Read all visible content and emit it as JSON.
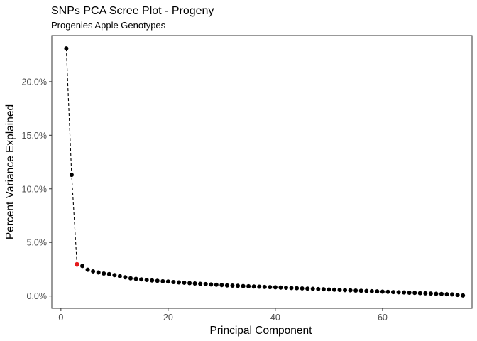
{
  "chart_data": {
    "type": "scatter",
    "title": "SNPs PCA Scree Plot - Progeny",
    "subtitle": "Progenies Apple Genotypes",
    "xlabel": "Principal Component",
    "ylabel": "Percent Variance Explained",
    "xlim": [
      -1.7,
      76.7
    ],
    "ylim": [
      -1.15,
      24.3
    ],
    "x_ticks": [
      0,
      20,
      40,
      60
    ],
    "x_tick_labels": [
      "0",
      "20",
      "40",
      "60"
    ],
    "y_ticks": [
      0,
      5,
      10,
      15,
      20
    ],
    "y_tick_labels": [
      "0.0%",
      "5.0%",
      "10.0%",
      "15.0%",
      "20.0%"
    ],
    "grid": false,
    "line_style": "dashed, connecting first three components",
    "highlight": {
      "x": 3,
      "color": "#e41a1c"
    },
    "point_color": "#000000",
    "x": [
      1,
      2,
      3,
      4,
      5,
      6,
      7,
      8,
      9,
      10,
      11,
      12,
      13,
      14,
      15,
      16,
      17,
      18,
      19,
      20,
      21,
      22,
      23,
      24,
      25,
      26,
      27,
      28,
      29,
      30,
      31,
      32,
      33,
      34,
      35,
      36,
      37,
      38,
      39,
      40,
      41,
      42,
      43,
      44,
      45,
      46,
      47,
      48,
      49,
      50,
      51,
      52,
      53,
      54,
      55,
      56,
      57,
      58,
      59,
      60,
      61,
      62,
      63,
      64,
      65,
      66,
      67,
      68,
      69,
      70,
      71,
      72,
      73,
      74,
      75
    ],
    "values": [
      23.1,
      11.3,
      2.95,
      2.8,
      2.45,
      2.3,
      2.2,
      2.1,
      2.05,
      1.95,
      1.85,
      1.75,
      1.65,
      1.6,
      1.55,
      1.5,
      1.45,
      1.42,
      1.38,
      1.35,
      1.3,
      1.27,
      1.24,
      1.2,
      1.17,
      1.14,
      1.11,
      1.08,
      1.05,
      1.02,
      0.99,
      0.97,
      0.95,
      0.93,
      0.91,
      0.89,
      0.87,
      0.85,
      0.83,
      0.81,
      0.79,
      0.77,
      0.75,
      0.73,
      0.71,
      0.69,
      0.67,
      0.65,
      0.63,
      0.61,
      0.59,
      0.57,
      0.55,
      0.53,
      0.51,
      0.49,
      0.47,
      0.45,
      0.43,
      0.41,
      0.39,
      0.37,
      0.35,
      0.33,
      0.31,
      0.29,
      0.27,
      0.25,
      0.23,
      0.21,
      0.19,
      0.17,
      0.15,
      0.1,
      0.05
    ]
  }
}
